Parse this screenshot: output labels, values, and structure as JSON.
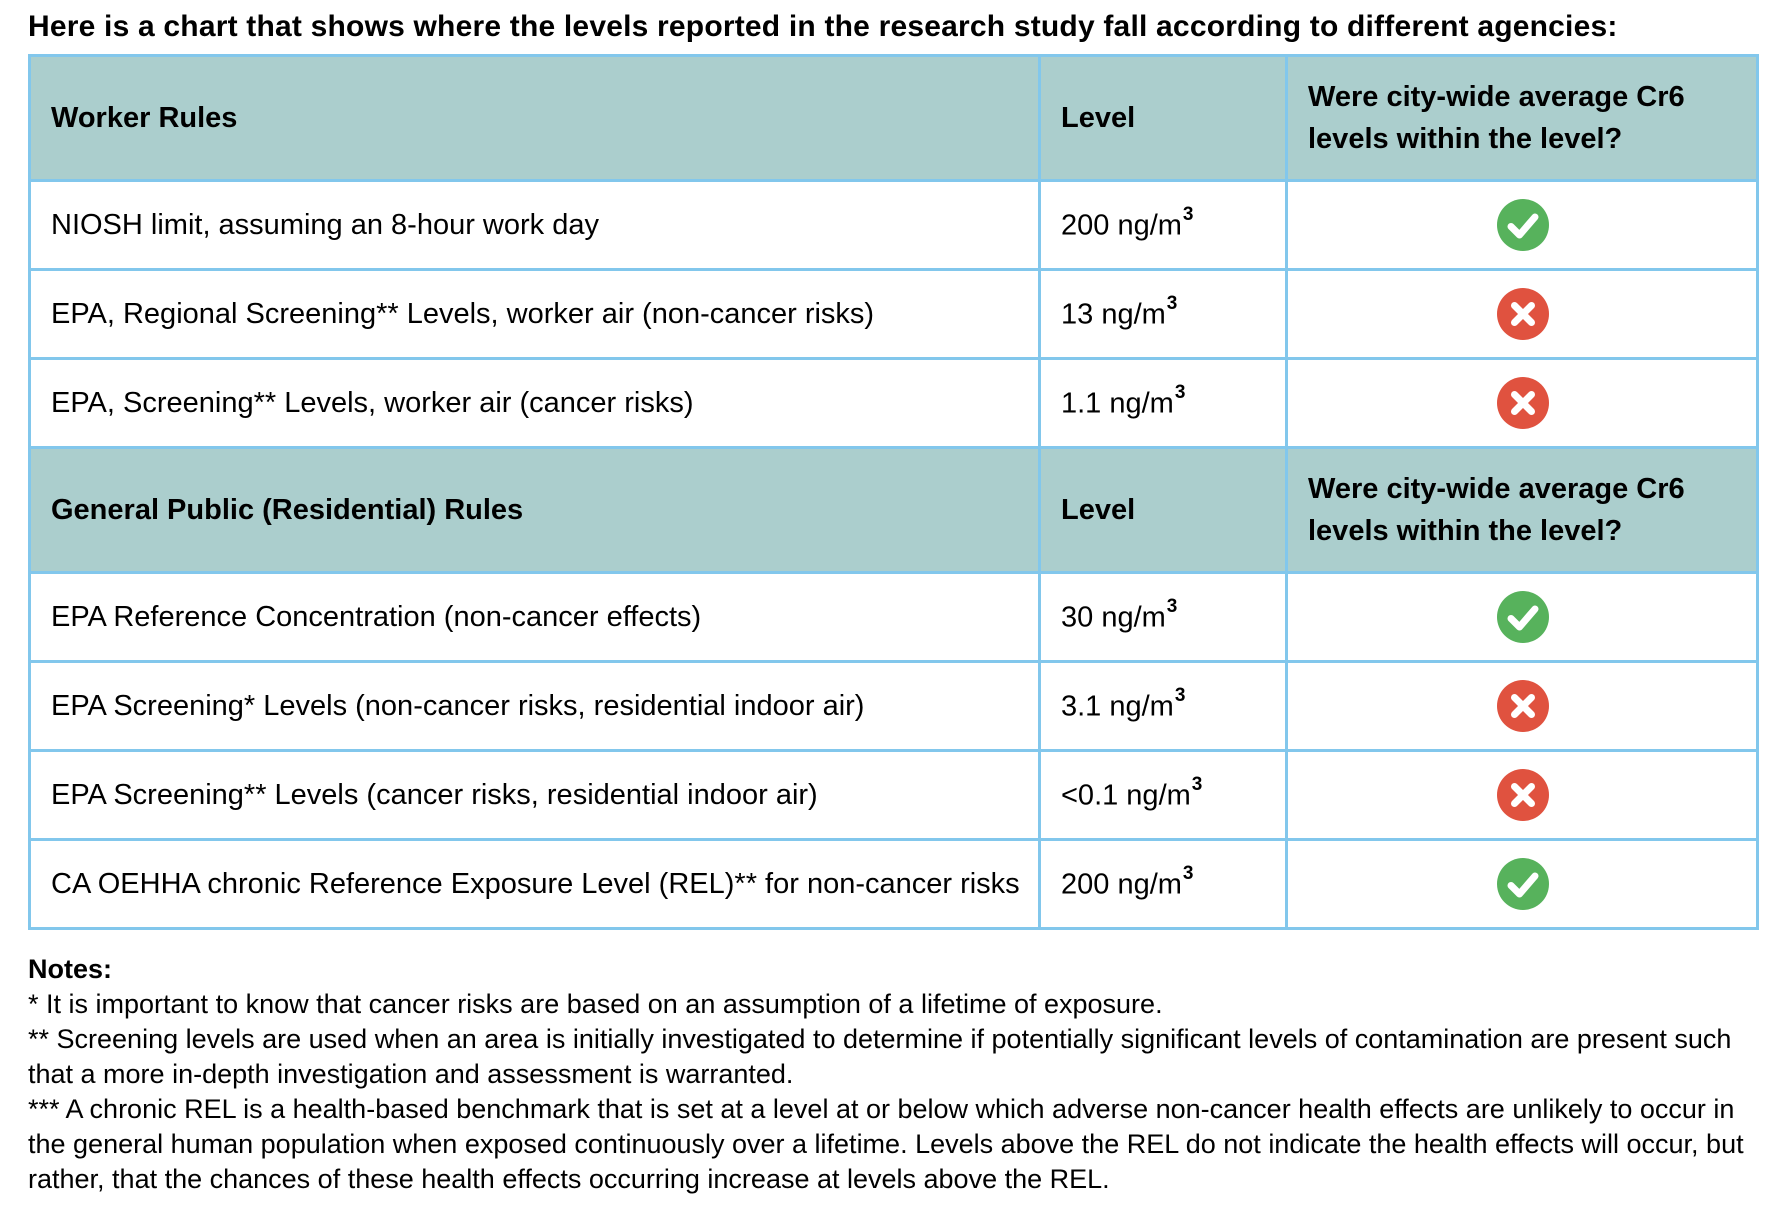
{
  "title": "Here is a chart that shows where the levels reported in the research study fall according to different agencies:",
  "table": {
    "level_header": "Level",
    "question_header": "Were city-wide average Cr6 levels within the level?",
    "sections": [
      {
        "title": "Worker Rules",
        "rows": [
          {
            "rule": "NIOSH limit, assuming an 8-hour work day",
            "level": "200 ng/m³",
            "within": true
          },
          {
            "rule": "EPA, Regional Screening** Levels, worker air (non-cancer risks)",
            "level": "13 ng/m³",
            "within": false
          },
          {
            "rule": "EPA, Screening** Levels, worker air (cancer risks)",
            "level": "1.1 ng/m³",
            "within": false
          }
        ]
      },
      {
        "title": "General Public (Residential) Rules",
        "rows": [
          {
            "rule": "EPA Reference Concentration (non-cancer effects)",
            "level": "30 ng/m³",
            "within": true
          },
          {
            "rule": "EPA Screening* Levels (non-cancer risks, residential indoor air)",
            "level": "3.1 ng/m³",
            "within": false
          },
          {
            "rule": "EPA Screening** Levels (cancer risks, residential indoor air)",
            "level": "<0.1 ng/m³",
            "within": false
          },
          {
            "rule": "CA OEHHA chronic Reference Exposure Level (REL)** for non-cancer risks",
            "level": "200 ng/m³",
            "within": true
          }
        ]
      }
    ]
  },
  "icons": {
    "check": {
      "name": "check-icon",
      "meaning": "yes",
      "color": "#57b25c"
    },
    "x": {
      "name": "x-icon",
      "meaning": "no",
      "color": "#e0523f"
    }
  },
  "colors": {
    "header_background": "#abcecd",
    "table_border": "#82c7ec",
    "check_green": "#57b25c",
    "x_red": "#e0523f"
  },
  "notes": {
    "label": "Notes:",
    "items": [
      "* It is important to know that cancer risks are based on an assumption of a lifetime of exposure.",
      "** Screening levels are used when an area is initially investigated to determine if potentially significant levels of contamination are present such that a more in-depth investigation and assessment is warranted.",
      "*** A chronic REL is a health-based benchmark that is set at a level at or below which adverse non-cancer health effects are unlikely to occur in the general human population when exposed continuously over a lifetime. Levels above the REL do not indicate the health effects will occur, but rather, that the chances of these health effects occurring increase at levels above the REL."
    ]
  }
}
